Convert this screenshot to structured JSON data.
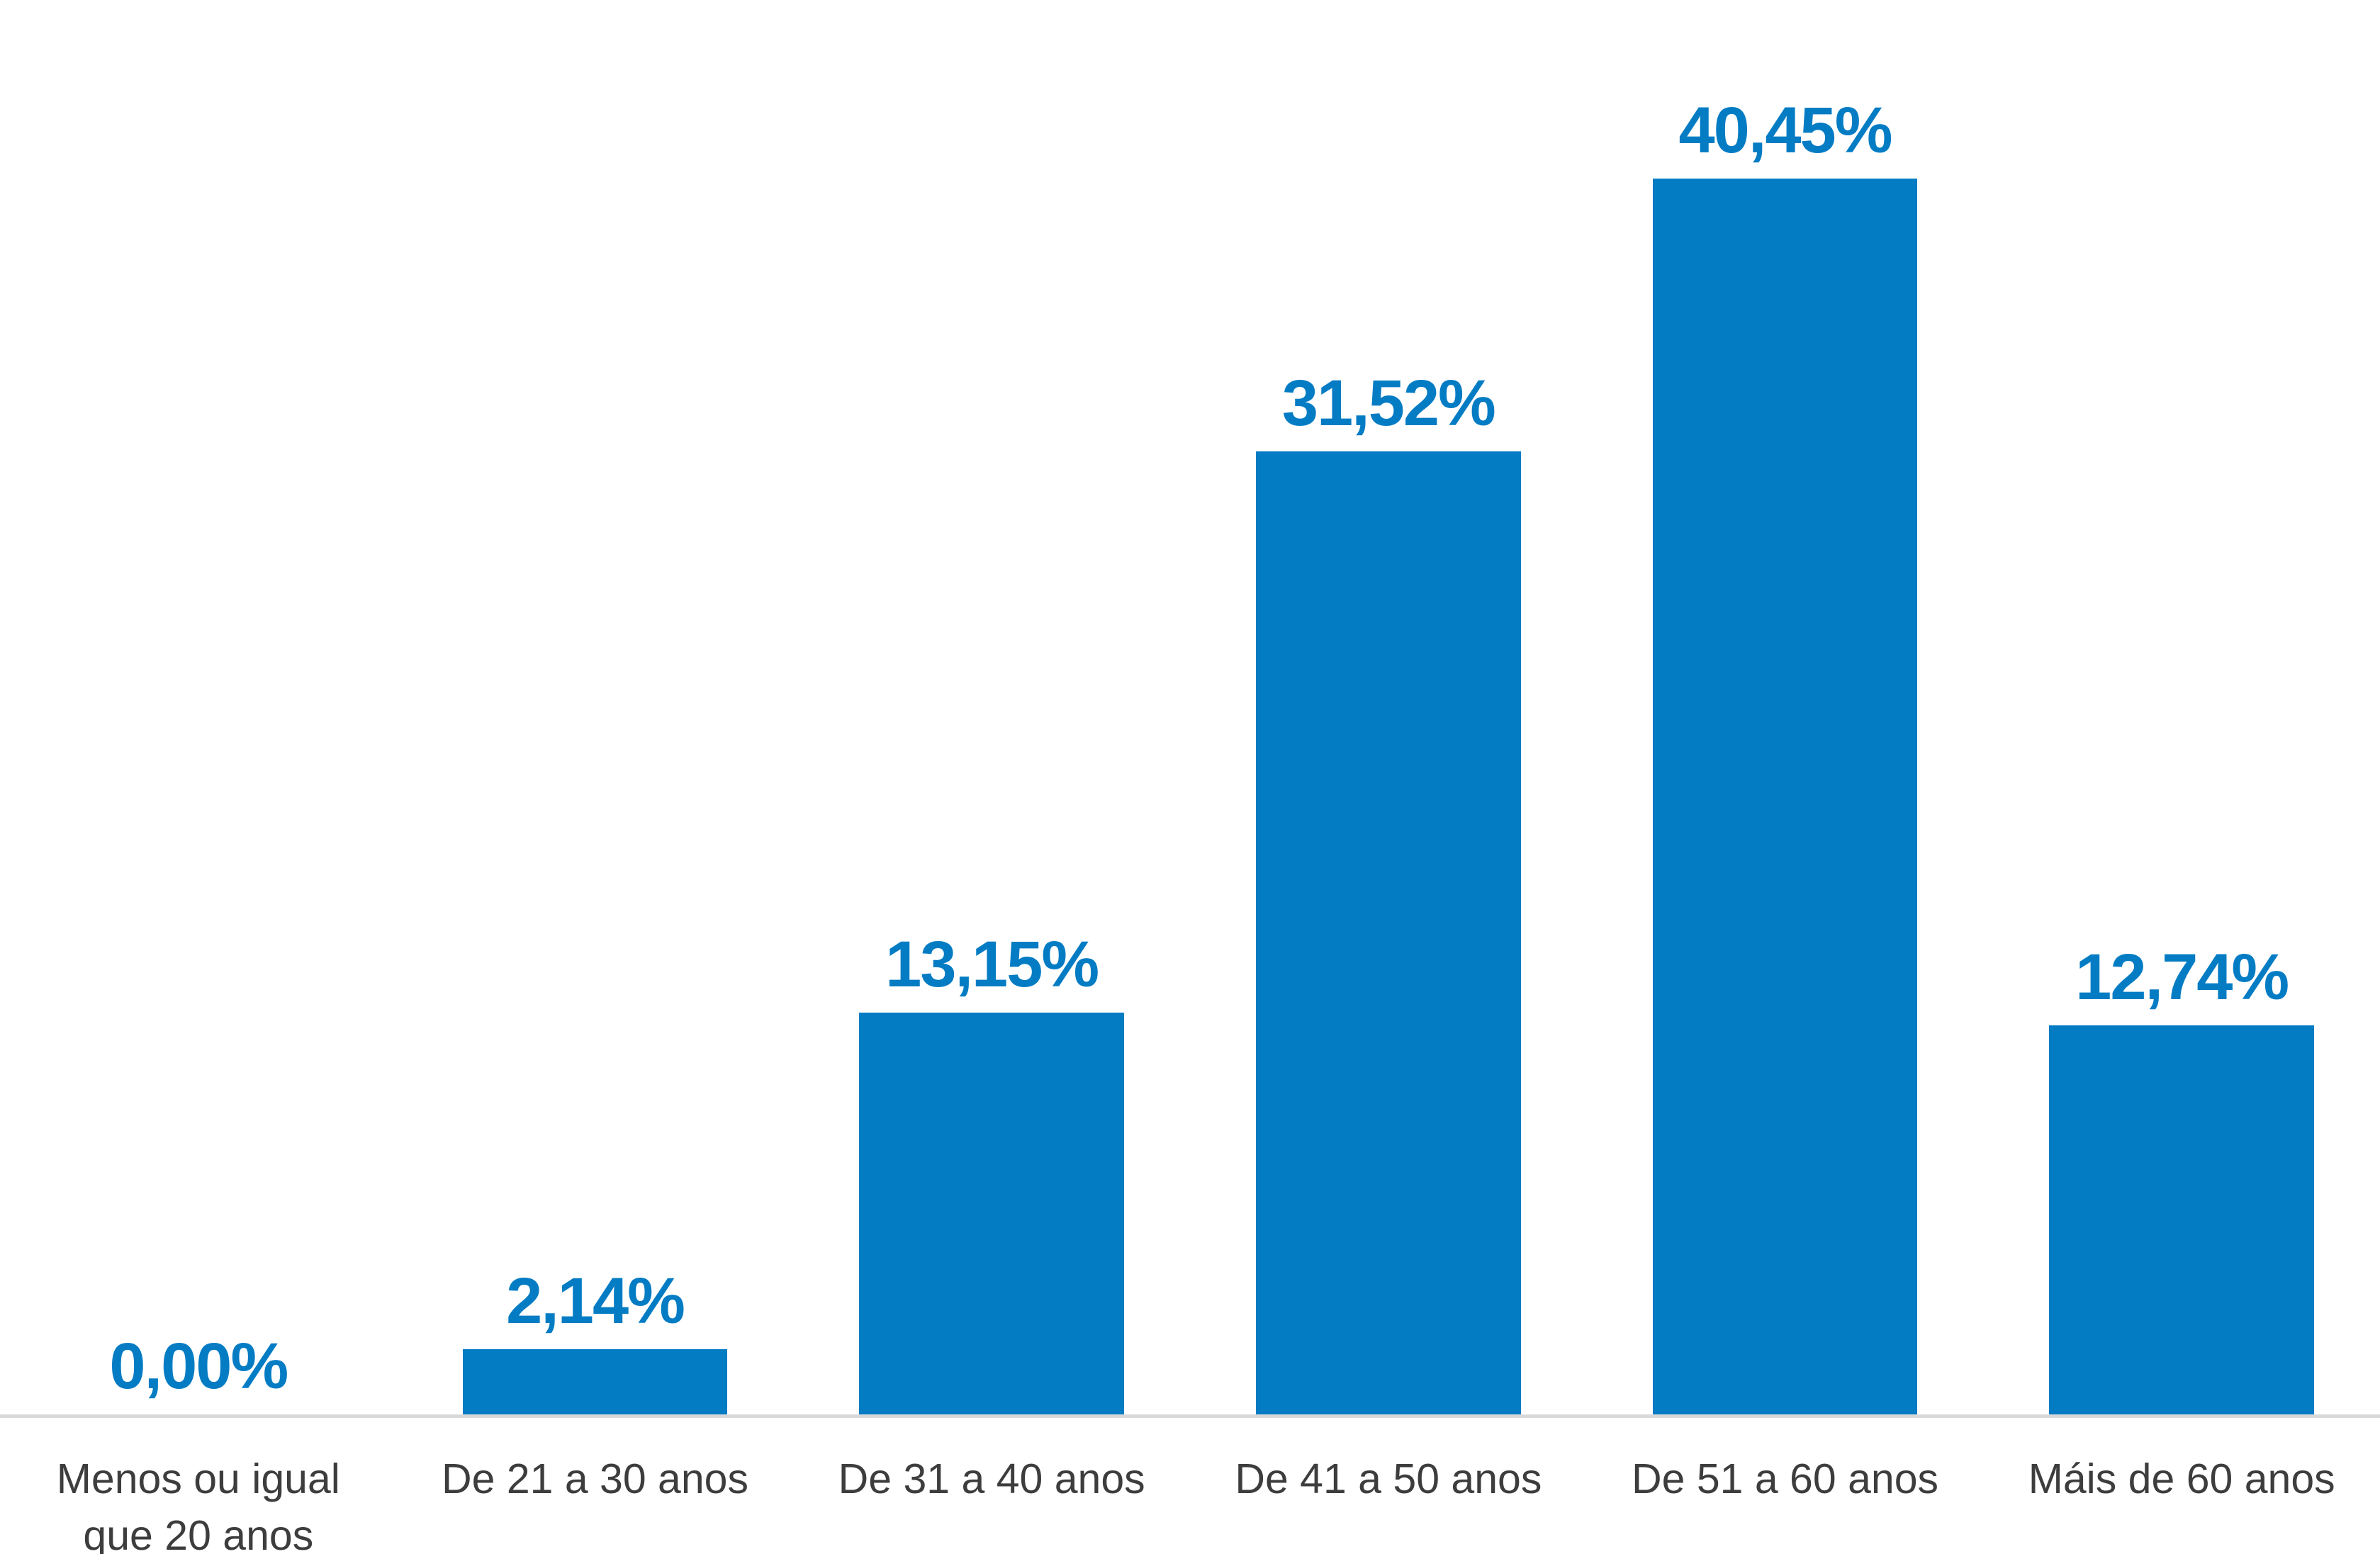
{
  "chart_data": {
    "type": "bar",
    "title": "",
    "xlabel": "",
    "ylabel": "",
    "categories": [
      "Menos ou igual que 20 anos",
      "De 21 a 30 anos",
      "De 31 a 40 anos",
      "De 41 a 50 anos",
      "De 51 a 60 anos",
      "Máis de 60 anos"
    ],
    "values": [
      0,
      2.14,
      13.15,
      31.52,
      40.45,
      12.74
    ],
    "value_labels": [
      "0,00%",
      "2,14%",
      "13,15%",
      "31,52%",
      "40,45%",
      "12,74%"
    ],
    "ylim": [
      0,
      46.3
    ],
    "grid": false,
    "legend": false,
    "colors": {
      "bar": "#047CC4",
      "value_label": "#047CC4",
      "category_label": "#3D3D3D",
      "axis_line": "#D9D9D9"
    }
  }
}
